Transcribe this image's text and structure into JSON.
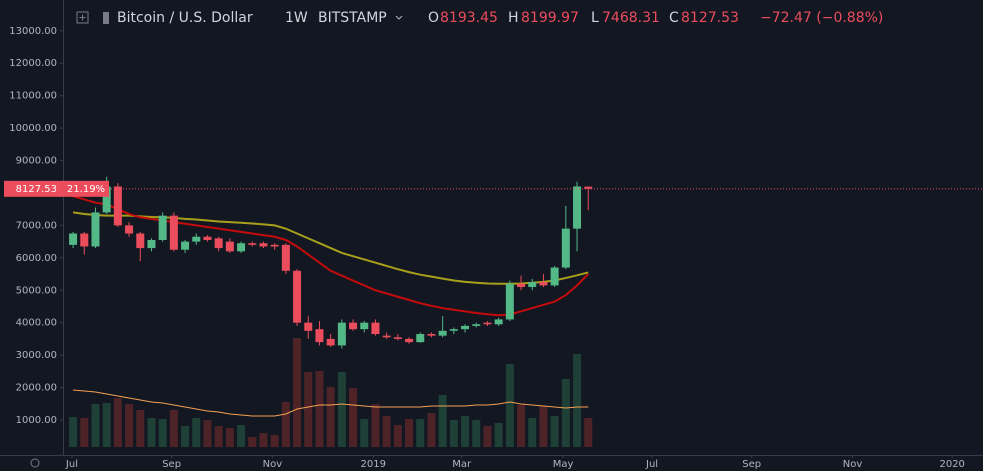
{
  "chart_data": {
    "type": "candlestick",
    "header": {
      "symbol": "Bitcoin / U.S. Dollar",
      "interval": "1W",
      "exchange": "BITSTAMP",
      "o_label": "O",
      "open": 8193.45,
      "h_label": "H",
      "high": 8199.97,
      "l_label": "L",
      "low": 7468.31,
      "c_label": "C",
      "close": 8127.53,
      "change": "−72.47 (−0.88%)"
    },
    "price_label": {
      "value": 8127.53,
      "label": "8127.53",
      "percent": "21.19%"
    },
    "x": [
      0,
      1,
      2,
      3,
      4,
      5,
      6,
      7,
      8,
      9,
      10,
      11,
      12,
      13,
      14,
      15,
      16,
      17,
      18,
      19,
      20,
      21,
      22,
      23,
      24,
      25,
      26,
      27,
      28,
      29,
      30,
      31,
      32,
      33,
      34,
      35,
      36,
      37,
      38,
      39,
      40,
      41,
      42,
      43,
      44,
      45,
      46
    ],
    "open": [
      6400,
      6750,
      6350,
      7400,
      8200,
      7000,
      6750,
      6300,
      6550,
      7300,
      6250,
      6500,
      6650,
      6600,
      6500,
      6200,
      6450,
      6450,
      6400,
      6400,
      5600,
      4000,
      3800,
      3500,
      3300,
      4000,
      3800,
      4000,
      3600,
      3550,
      3500,
      3400,
      3650,
      3600,
      3750,
      3800,
      3900,
      4000,
      3950,
      4100,
      5200,
      5100,
      5250,
      5150,
      5700,
      6900,
      8193.45
    ],
    "high": [
      6800,
      6800,
      7550,
      8500,
      8300,
      7100,
      6800,
      6600,
      7400,
      7400,
      6550,
      6750,
      6700,
      6650,
      6600,
      6500,
      6500,
      6500,
      6450,
      6450,
      5650,
      4200,
      4050,
      3650,
      4100,
      4100,
      4050,
      4100,
      3700,
      3650,
      3550,
      3700,
      3700,
      4200,
      3850,
      3950,
      4000,
      4050,
      4150,
      5300,
      5450,
      5350,
      5500,
      5750,
      7600,
      8350,
      8199.97
    ],
    "low": [
      6300,
      6100,
      6300,
      7350,
      6950,
      6650,
      5900,
      6200,
      6500,
      6200,
      6150,
      6400,
      6500,
      6200,
      6150,
      6150,
      6350,
      6300,
      6250,
      5500,
      3900,
      3500,
      3300,
      3250,
      3200,
      3750,
      3700,
      3600,
      3500,
      3450,
      3350,
      3380,
      3550,
      3550,
      3650,
      3700,
      3850,
      3900,
      3900,
      4050,
      5000,
      5000,
      5100,
      5100,
      5650,
      6200,
      7468.31
    ],
    "close": [
      6750,
      6350,
      7400,
      8200,
      7000,
      6750,
      6300,
      6550,
      7300,
      6250,
      6500,
      6650,
      6550,
      6300,
      6200,
      6450,
      6400,
      6350,
      6350,
      5600,
      4000,
      3750,
      3400,
      3300,
      4000,
      3800,
      4000,
      3650,
      3550,
      3500,
      3400,
      3650,
      3600,
      3750,
      3800,
      3900,
      3950,
      3950,
      4100,
      5200,
      5100,
      5250,
      5150,
      5700,
      6900,
      8200,
      8127.53
    ],
    "volume": [
      30,
      29,
      43,
      44,
      49,
      43,
      37,
      29,
      28,
      37,
      21,
      29,
      27,
      21,
      19,
      22,
      10,
      14,
      12,
      45,
      109,
      75,
      76,
      60,
      75,
      59,
      28,
      43,
      31,
      22,
      28,
      28,
      34,
      52,
      27,
      31,
      27,
      21,
      24,
      83,
      42,
      29,
      41,
      31,
      68,
      93,
      29
    ],
    "volume_ma": [
      57,
      56,
      55,
      53,
      51,
      49,
      47,
      45,
      44,
      42,
      40,
      38,
      36,
      35,
      33,
      32,
      31,
      31,
      31,
      33,
      38,
      40,
      42,
      42,
      43,
      42,
      41,
      40,
      40,
      40,
      40,
      40,
      41,
      41,
      41,
      41,
      42,
      42,
      43,
      45,
      43,
      42,
      41,
      40,
      39,
      40,
      40
    ],
    "volume_ylim": [
      0,
      150
    ],
    "ma_fast": [
      7900,
      7800,
      7700,
      7650,
      7500,
      7350,
      7250,
      7200,
      7150,
      7100,
      7050,
      7000,
      6950,
      6900,
      6850,
      6800,
      6750,
      6700,
      6650,
      6550,
      6350,
      6100,
      5850,
      5600,
      5450,
      5300,
      5150,
      5000,
      4900,
      4800,
      4700,
      4600,
      4520,
      4450,
      4400,
      4350,
      4300,
      4260,
      4230,
      4250,
      4350,
      4450,
      4550,
      4650,
      4850,
      5150,
      5500
    ],
    "ma_slow": [
      7400,
      7350,
      7320,
      7300,
      7300,
      7300,
      7280,
      7260,
      7250,
      7230,
      7200,
      7180,
      7150,
      7120,
      7100,
      7080,
      7060,
      7030,
      7000,
      6900,
      6750,
      6600,
      6450,
      6300,
      6150,
      6050,
      5950,
      5850,
      5750,
      5650,
      5560,
      5480,
      5420,
      5360,
      5300,
      5260,
      5230,
      5210,
      5200,
      5200,
      5210,
      5230,
      5260,
      5300,
      5380,
      5460,
      5550
    ],
    "colors": {
      "up": "#53b987",
      "down": "#eb4d5c",
      "volume_up": "#1f4036",
      "volume_down": "#4d2328",
      "volume_ma": "#f5a152",
      "ma_fast": "#c40c0c",
      "ma_slow": "#a8a01c"
    },
    "xlim": [
      -0.9,
      81.25
    ],
    "xticks": [
      {
        "value": -0.1,
        "label": "Jul"
      },
      {
        "value": 8.8,
        "label": "Sep"
      },
      {
        "value": 17.8,
        "label": "Nov"
      },
      {
        "value": 26.8,
        "label": "2019"
      },
      {
        "value": 34.7,
        "label": "Mar"
      },
      {
        "value": 43.75,
        "label": "May"
      },
      {
        "value": 51.7,
        "label": "Jul"
      },
      {
        "value": 60.6,
        "label": "Sep"
      },
      {
        "value": 69.6,
        "label": "Nov"
      },
      {
        "value": 78.5,
        "label": "2020"
      }
    ],
    "ylim": [
      -80,
      13950
    ],
    "yticks": [
      {
        "value": 1000,
        "label": "1000.00"
      },
      {
        "value": 2000,
        "label": "2000.00"
      },
      {
        "value": 3000,
        "label": "3000.00"
      },
      {
        "value": 4000,
        "label": "4000.00"
      },
      {
        "value": 5000,
        "label": "5000.00"
      },
      {
        "value": 6000,
        "label": "6000.00"
      },
      {
        "value": 7000,
        "label": "7000.00"
      },
      {
        "value": 8000,
        "label": "8000.00"
      },
      {
        "value": 9000,
        "label": "9000.00"
      },
      {
        "value": 10000,
        "label": "10000.00"
      },
      {
        "value": 11000,
        "label": "11000.00"
      },
      {
        "value": 12000,
        "label": "12000.00"
      },
      {
        "value": 13000,
        "label": "13000.00"
      }
    ]
  }
}
